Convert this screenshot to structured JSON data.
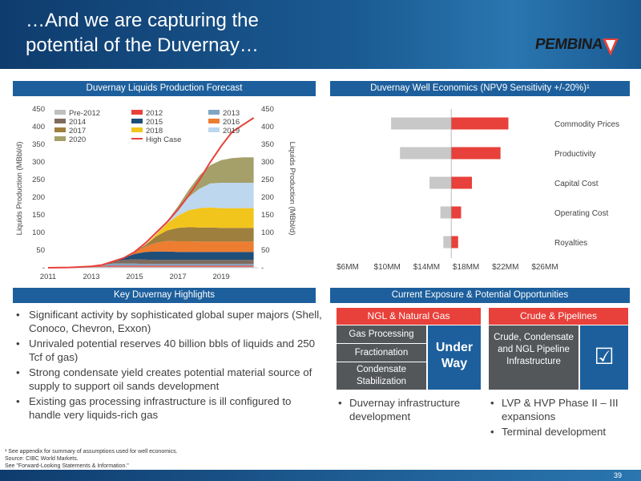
{
  "header": {
    "title": "…And we are capturing the\npotential of the Duvernay…",
    "logo_text": "PEMBINA"
  },
  "sections": {
    "forecast_title": "Duvernay Liquids Production Forecast",
    "economics_title": "Duvernay Well Economics (NPV9 Sensitivity +/-20%)¹",
    "highlights_title": "Key Duvernay Highlights",
    "exposure_title": "Current Exposure & Potential Opportunities"
  },
  "chart_data": [
    {
      "type": "area",
      "title": "Duvernay Liquids Production Forecast",
      "ylabel": "Liquids Production (MBbl/d)",
      "ylabel_right": "Liquids Production (MBbl/d)",
      "ylim": [
        0,
        450
      ],
      "yticks": [
        "-",
        "50",
        "100",
        "150",
        "200",
        "250",
        "300",
        "350",
        "400",
        "450"
      ],
      "xticks": [
        "2011",
        "2013",
        "2015",
        "2017",
        "2019"
      ],
      "x": [
        2011,
        2012,
        2013,
        2013.5,
        2014,
        2014.5,
        2015,
        2015.5,
        2016,
        2016.5,
        2017,
        2017.5,
        2018,
        2018.5,
        2019,
        2019.5,
        2020,
        2020.5
      ],
      "series": [
        {
          "name": "Pre-2012",
          "color": "#bfbfbf",
          "values": [
            0,
            1,
            2,
            3,
            3,
            3,
            3,
            3,
            3,
            3,
            3,
            3,
            3,
            3,
            3,
            3,
            3,
            3
          ]
        },
        {
          "name": "2012",
          "color": "#e8403a",
          "values": [
            0,
            0,
            1,
            2,
            3,
            3,
            3,
            3,
            3,
            3,
            3,
            3,
            3,
            3,
            3,
            3,
            3,
            3
          ]
        },
        {
          "name": "2013",
          "color": "#7ea6c3",
          "values": [
            0,
            0,
            0,
            3,
            6,
            6,
            6,
            5,
            5,
            5,
            5,
            5,
            5,
            5,
            5,
            5,
            5,
            5
          ]
        },
        {
          "name": "2014",
          "color": "#7f6b5d",
          "values": [
            0,
            0,
            0,
            0,
            6,
            10,
            12,
            12,
            11,
            11,
            11,
            11,
            11,
            11,
            11,
            11,
            11,
            11
          ]
        },
        {
          "name": "2015",
          "color": "#1f4e79",
          "values": [
            0,
            0,
            0,
            0,
            0,
            6,
            15,
            22,
            24,
            24,
            23,
            23,
            23,
            23,
            23,
            23,
            23,
            23
          ]
        },
        {
          "name": "2016",
          "color": "#ed7d31",
          "values": [
            0,
            0,
            0,
            0,
            0,
            0,
            5,
            15,
            25,
            30,
            30,
            30,
            29,
            29,
            29,
            29,
            29,
            29
          ]
        },
        {
          "name": "2017",
          "color": "#9e7f3e",
          "values": [
            0,
            0,
            0,
            0,
            0,
            0,
            0,
            5,
            18,
            30,
            38,
            40,
            40,
            40,
            39,
            39,
            39,
            39
          ]
        },
        {
          "name": "2018",
          "color": "#f2c51c",
          "values": [
            0,
            0,
            0,
            0,
            0,
            0,
            0,
            0,
            6,
            20,
            35,
            48,
            55,
            57,
            56,
            56,
            56,
            56
          ]
        },
        {
          "name": "2019",
          "color": "#bdd7ee",
          "values": [
            0,
            0,
            0,
            0,
            0,
            0,
            0,
            0,
            0,
            6,
            20,
            38,
            55,
            68,
            72,
            72,
            72,
            72
          ]
        },
        {
          "name": "2020",
          "color": "#a5a06a",
          "values": [
            0,
            0,
            0,
            0,
            0,
            0,
            0,
            0,
            0,
            0,
            6,
            20,
            38,
            52,
            64,
            70,
            72,
            72
          ]
        }
      ],
      "high_case": {
        "name": "High Case",
        "color": "#e8403a",
        "values": [
          0,
          1,
          4,
          8,
          18,
          28,
          45,
          70,
          100,
          130,
          165,
          205,
          250,
          300,
          345,
          385,
          405,
          425
        ]
      }
    },
    {
      "type": "bar",
      "subtype": "tornado",
      "title": "Duvernay Well Economics (NPV9 Sensitivity +/-20%)¹",
      "xticks": [
        "$6MM",
        "$10MM",
        "$14MM",
        "$18MM",
        "$22MM",
        "$26MM"
      ],
      "xlim": [
        6,
        26
      ],
      "base": 16.5,
      "categories": [
        "Commodity Prices",
        "Productivity",
        "Capital Cost",
        "Operating Cost",
        "Royalties"
      ],
      "low": [
        10.4,
        11.3,
        14.3,
        15.4,
        15.7
      ],
      "high": [
        22.3,
        21.5,
        18.6,
        17.5,
        17.2
      ],
      "low_color": "#c8c8c8",
      "high_color": "#e8403a"
    }
  ],
  "highlights": [
    "Significant activity by sophisticated global super majors (Shell, Conoco, Chevron, Exxon)",
    "Unrivaled potential reserves 40 billion bbls of liquids and 250 Tcf of gas)",
    "Strong condensate yield creates potential material source of supply to support oil sands development",
    "Existing gas processing infrastructure is ill configured to handle very liquids-rich gas"
  ],
  "exposure": {
    "ngl_header": "NGL & Natural Gas",
    "crude_header": "Crude & Pipelines",
    "ngl_items": [
      "Gas Processing",
      "Fractionation",
      "Condensate Stabilization"
    ],
    "under_way": "Under Way",
    "crude_box": "Crude, Condensate and NGL Pipeline Infrastructure",
    "checkbox": "☑",
    "ngl_bullets": [
      "Duvernay infrastructure development"
    ],
    "crude_bullets": [
      "LVP & HVP Phase II – III expansions",
      "Terminal development"
    ]
  },
  "footnotes": {
    "note1": "¹ See appendix for summary of assumptions used for well economics.",
    "note2": "Source: CIBC World Markets.",
    "note3": "See \"Forward-Looking Statements & Information.\""
  },
  "page_number": "39"
}
